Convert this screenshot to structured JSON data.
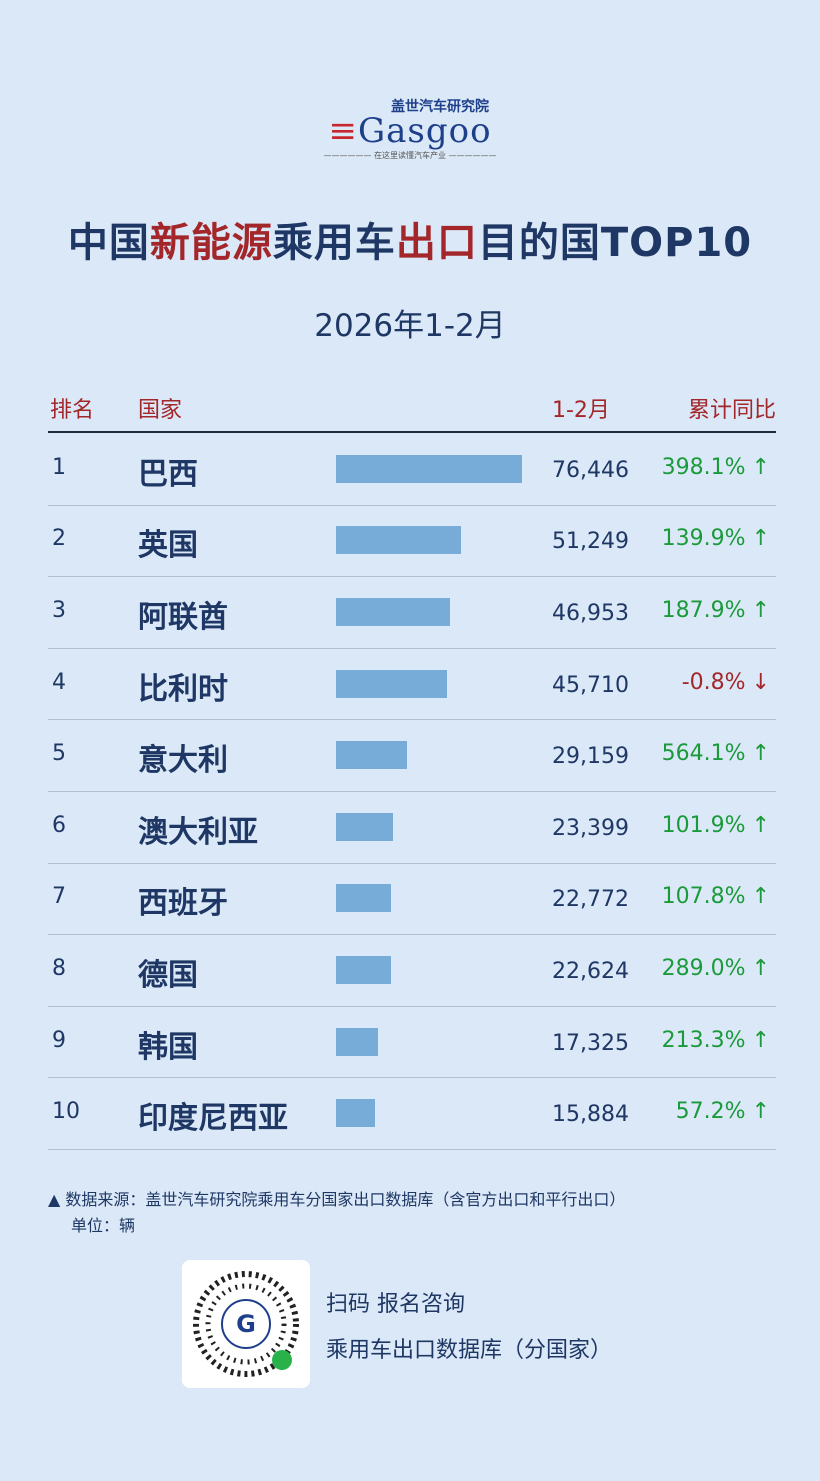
{
  "header": {
    "logo_cn": "盖世汽车研究院",
    "logo_en": "Gasgoo",
    "tagline": "在这里读懂汽车产业",
    "title": [
      {
        "text": "中国",
        "accent": false
      },
      {
        "text": "新能源",
        "accent": true
      },
      {
        "text": "乘用车",
        "accent": false
      },
      {
        "text": "出口",
        "accent": true
      },
      {
        "text": "目的国TOP10",
        "accent": false
      }
    ],
    "subtitle": "2026年1-2月"
  },
  "table": {
    "columns": [
      "排名",
      "国家",
      "1-2月",
      "累计同比"
    ],
    "rows": [
      {
        "rank": "1",
        "country": "巴西",
        "value": 76446,
        "value_label": "76,446",
        "yoy": "398.1%",
        "arrow": "↑",
        "trend": "up"
      },
      {
        "rank": "2",
        "country": "英国",
        "value": 51249,
        "value_label": "51,249",
        "yoy": "139.9%",
        "arrow": "↑",
        "trend": "up"
      },
      {
        "rank": "3",
        "country": "阿联酋",
        "value": 46953,
        "value_label": "46,953",
        "yoy": "187.9%",
        "arrow": "↑",
        "trend": "up"
      },
      {
        "rank": "4",
        "country": "比利时",
        "value": 45710,
        "value_label": "45,710",
        "yoy": "-0.8%",
        "arrow": "↓",
        "trend": "down"
      },
      {
        "rank": "5",
        "country": "意大利",
        "value": 29159,
        "value_label": "29,159",
        "yoy": "564.1%",
        "arrow": "↑",
        "trend": "up"
      },
      {
        "rank": "6",
        "country": "澳大利亚",
        "value": 23399,
        "value_label": "23,399",
        "yoy": "101.9%",
        "arrow": "↑",
        "trend": "up"
      },
      {
        "rank": "7",
        "country": "西班牙",
        "value": 22772,
        "value_label": "22,772",
        "yoy": "107.8%",
        "arrow": "↑",
        "trend": "up"
      },
      {
        "rank": "8",
        "country": "德国",
        "value": 22624,
        "value_label": "22,624",
        "yoy": "289.0%",
        "arrow": "↑",
        "trend": "up"
      },
      {
        "rank": "9",
        "country": "韩国",
        "value": 17325,
        "value_label": "17,325",
        "yoy": "213.3%",
        "arrow": "↑",
        "trend": "up"
      },
      {
        "rank": "10",
        "country": "印度尼西亚",
        "value": 15884,
        "value_label": "15,884",
        "yoy": "57.2%",
        "arrow": "↑",
        "trend": "up"
      }
    ]
  },
  "footer": {
    "source": "数据来源：盖世汽车研究院乘用车分国家出口数据库（含官方出口和平行出口）",
    "unit": "单位：辆",
    "qr_line1": "扫码 报名咨询",
    "qr_line2": "乘用车出口数据库（分国家）"
  }
}
